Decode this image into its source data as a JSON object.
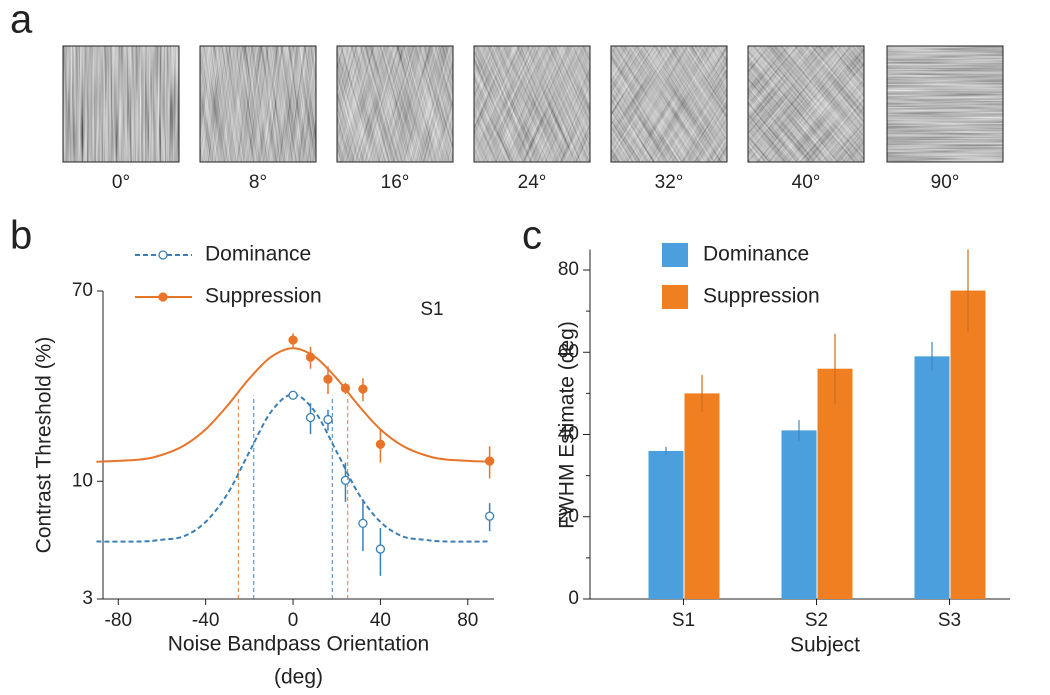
{
  "stimuli": {
    "panel": "a",
    "labels": [
      "0°",
      "8°",
      "16°",
      "24°",
      "32°",
      "40°",
      "90°"
    ]
  },
  "chart_data": [
    {
      "type": "line",
      "panel": "b",
      "annotation": "S1",
      "xlabel": [
        "Noise Bandpass Orientation",
        "(deg)"
      ],
      "ylabel": "Contrast Threshold (%)",
      "xlim": [
        -87,
        92
      ],
      "xticks": [
        -80,
        -40,
        0,
        40,
        80
      ],
      "ylim": [
        3,
        70
      ],
      "yticks": [
        3,
        10,
        70
      ],
      "ylog": true,
      "legend": "top-left",
      "series": [
        {
          "name": "Dominance",
          "color": "#3b7fb5",
          "marker": "open",
          "line_style": "dashed",
          "x": [
            0,
            8,
            16,
            24,
            32,
            40,
            90
          ],
          "values": [
            24.1,
            19.2,
            18.8,
            10.1,
            6.5,
            5.0,
            7.0
          ],
          "errors": [
            1,
            3,
            2,
            2,
            1.6,
            1.2,
            1
          ],
          "fit": {
            "x": [
              -90,
              -70,
              -60,
              -50,
              -40,
              -30,
              -20,
              -10,
              0,
              10,
              20,
              30,
              40,
              50,
              60,
              70,
              90
            ],
            "values": [
              5.4,
              5.4,
              5.5,
              5.7,
              6.6,
              8.8,
              13.5,
              20.4,
              24.3,
              20.4,
              13.5,
              8.8,
              6.6,
              5.7,
              5.5,
              5.4,
              5.4
            ]
          },
          "fwhm": [
            -18,
            18
          ],
          "fwhm_top": 24
        },
        {
          "name": "Suppression",
          "color": "#e8742a",
          "marker": "filled",
          "line_style": "solid",
          "x": [
            0,
            8,
            16,
            24,
            32,
            40,
            90
          ],
          "values": [
            42.4,
            35.6,
            28.4,
            25.9,
            25.7,
            14.6,
            12.3
          ],
          "errors": [
            3,
            4,
            4,
            1.5,
            3,
            2.5,
            2
          ],
          "fit": {
            "x": [
              -90,
              -70,
              -60,
              -50,
              -40,
              -30,
              -20,
              -10,
              0,
              10,
              20,
              30,
              40,
              50,
              60,
              70,
              90
            ],
            "values": [
              12.2,
              12.5,
              13.1,
              14.4,
              17.0,
              21.7,
              28.6,
              35.7,
              39.0,
              35.7,
              28.6,
              21.7,
              17.0,
              14.4,
              13.1,
              12.5,
              12.2
            ]
          },
          "fwhm": [
            -25,
            25
          ],
          "fwhm_top": 24
        }
      ]
    },
    {
      "type": "bar",
      "panel": "c",
      "xlabel": "Subject",
      "ylabel": "FWHM Estimate (deg)",
      "categories": [
        "S1",
        "S2",
        "S3"
      ],
      "ylim": [
        0,
        85
      ],
      "yticks": [
        0,
        20,
        40,
        60,
        80
      ],
      "yminor_ticks": [
        10,
        30,
        50,
        70
      ],
      "legend": "top-left",
      "series": [
        {
          "name": "Dominance",
          "color": "#4a9fdc",
          "values": [
            36,
            41,
            59
          ],
          "errors": [
            1,
            2.5,
            3.5
          ]
        },
        {
          "name": "Suppression",
          "color": "#f07f22",
          "values": [
            50,
            56,
            75
          ],
          "errors": [
            4.5,
            8.5,
            10
          ]
        }
      ]
    }
  ]
}
